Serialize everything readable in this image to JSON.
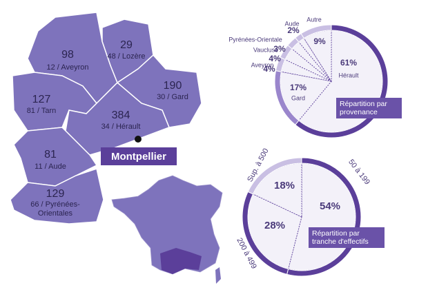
{
  "map": {
    "regions": [
      {
        "count": 98,
        "label": "12 / Aveyron"
      },
      {
        "count": 29,
        "label": "48 / Lozère"
      },
      {
        "count": 190,
        "label": "30 / Gard"
      },
      {
        "count": 127,
        "label": "81 / Tarn"
      },
      {
        "count": 384,
        "label": "34 / Hérault"
      },
      {
        "count": 81,
        "label": "11 / Aude"
      },
      {
        "count": 129,
        "label": "66 / Pyrénées-Orientales"
      }
    ],
    "city": "Montpellier"
  },
  "chart_data": [
    {
      "type": "pie",
      "title": "Répartition par provenance",
      "categories": [
        "Hérault",
        "Gard",
        "Aveyron",
        "Vaucluse",
        "Pyrénées-Orientale",
        "Aude",
        "Autre"
      ],
      "values": [
        61,
        17,
        4,
        4,
        3,
        2,
        9
      ],
      "value_labels": [
        "61%",
        "17%",
        "4%",
        "4%",
        "3%",
        "2%",
        "9%"
      ],
      "colors": [
        "#5b3f9a",
        "#9a86cc",
        "#c9bfe3",
        "#c9bfe3",
        "#c9bfe3",
        "#c9bfe3",
        "#c9bfe3"
      ]
    },
    {
      "type": "pie",
      "title": "Répartition par tranche d'effectifs",
      "categories": [
        "50 à 199",
        "200 à 499",
        "Sup. à 500"
      ],
      "values": [
        54,
        28,
        18
      ],
      "value_labels": [
        "54%",
        "28%",
        "18%"
      ],
      "colors": [
        "#5b3f9a",
        "#5b3f9a",
        "#c9bfe3"
      ]
    }
  ]
}
